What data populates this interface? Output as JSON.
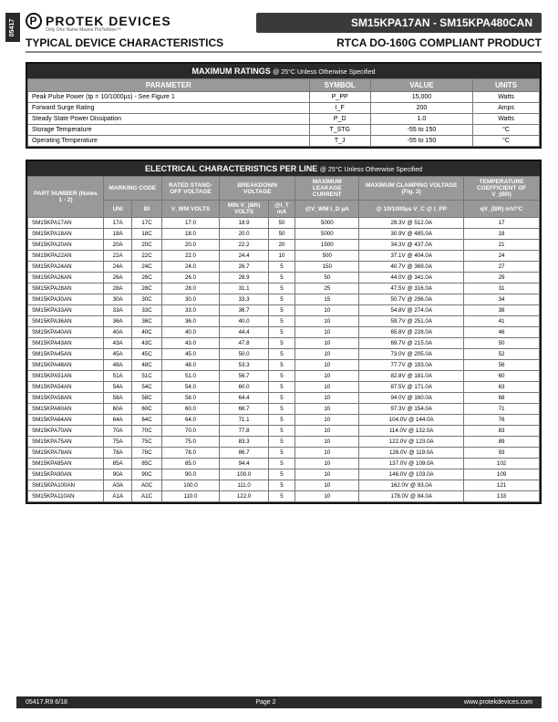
{
  "side_tab": "05417",
  "logo": {
    "brand": "PROTEK DEVICES",
    "p": "P",
    "tagline": "Only One Name Means ProTeKtion™"
  },
  "title_bar": "SM15KPA17AN - SM15KPA480CAN",
  "subhead": {
    "left": "TYPICAL DEVICE CHARACTERISTICS",
    "right": "RTCA DO-160G COMPLIANT PRODUCT"
  },
  "max_ratings": {
    "title": "MAXIMUM RATINGS",
    "title_note": "@ 25°C Unless Otherwise Specified",
    "headers": [
      "PARAMETER",
      "SYMBOL",
      "VALUE",
      "UNITS"
    ],
    "rows": [
      {
        "param": "Peak Pulse Power (tp = 10/1000µs) - See Figure 1",
        "symbol": "P_PP",
        "value": "15,000",
        "units": "Watts"
      },
      {
        "param": "Forward Surge Rating",
        "symbol": "I_F",
        "value": "200",
        "units": "Amps"
      },
      {
        "param": "Steady State Power Dissipation",
        "symbol": "P_D",
        "value": "1.0",
        "units": "Watts"
      },
      {
        "param": "Storage Temperature",
        "symbol": "T_STG",
        "value": "-55 to 150",
        "units": "°C"
      },
      {
        "param": "Operating Temperature",
        "symbol": "T_J",
        "value": "-55 to 150",
        "units": "°C"
      }
    ]
  },
  "elec": {
    "title": "ELECTRICAL CHARACTERISTICS PER LINE",
    "title_note": "@ 25°C Unless Otherwise Specified",
    "h1": {
      "part": "PART NUMBER (Notes 1 - 2)",
      "marking": "MARKING CODE",
      "standoff": "RATED STAND-OFF VOLTAGE",
      "breakdown": "BREAKDOWN VOLTAGE",
      "leakage": "MAXIMUM LEAKAGE CURRENT",
      "clamp": "MAXIMUM CLAMPING VOLTAGE (Fig. 2)",
      "temp": "TEMPERATURE COEFFICIENT OF V_(BR)"
    },
    "h2": {
      "uni": "UNI",
      "bi": "BI",
      "vwm": "V_WM VOLTS",
      "min": "MIN V_(BR) VOLTS",
      "it": "@I_T mA",
      "id": "@V_WM I_D µA",
      "clamp": "@ 10/1000µs V_C @ I_PP",
      "qv": "qV_(BR) mV/°C"
    },
    "rows": [
      {
        "pn": "SM15KPA17AN",
        "uni": "17A",
        "bi": "17C",
        "vwm": "17.0",
        "min": "18.9",
        "it": "50",
        "id": "5000",
        "clamp": "29.3V @ 512.0A",
        "qv": "17"
      },
      {
        "pn": "SM15KPA18AN",
        "uni": "18A",
        "bi": "18C",
        "vwm": "18.0",
        "min": "20.0",
        "it": "50",
        "id": "5000",
        "clamp": "30.9V @ 485.0A",
        "qv": "18"
      },
      {
        "pn": "SM15KPA20AN",
        "uni": "20A",
        "bi": "20C",
        "vwm": "20.0",
        "min": "22.2",
        "it": "20",
        "id": "1500",
        "clamp": "34.3V @ 437.0A",
        "qv": "21"
      },
      {
        "pn": "SM15KPA22AN",
        "uni": "22A",
        "bi": "22C",
        "vwm": "22.0",
        "min": "24.4",
        "it": "10",
        "id": "500",
        "clamp": "37.1V @ 404.0A",
        "qv": "24"
      },
      {
        "pn": "SM15KPA24AN",
        "uni": "24A",
        "bi": "24C",
        "vwm": "24.0",
        "min": "26.7",
        "it": "5",
        "id": "150",
        "clamp": "40.7V @ 369.0A",
        "qv": "27"
      },
      {
        "pn": "SM15KPA26AN",
        "uni": "26A",
        "bi": "26C",
        "vwm": "26.0",
        "min": "28.9",
        "it": "5",
        "id": "50",
        "clamp": "44.0V @ 341.0A",
        "qv": "29"
      },
      {
        "pn": "SM15KPA28AN",
        "uni": "28A",
        "bi": "28C",
        "vwm": "28.0",
        "min": "31.1",
        "it": "5",
        "id": "25",
        "clamp": "47.5V @ 316.0A",
        "qv": "31"
      },
      {
        "pn": "SM15KPA30AN",
        "uni": "30A",
        "bi": "30C",
        "vwm": "30.0",
        "min": "33.3",
        "it": "5",
        "id": "15",
        "clamp": "50.7V @ 296.0A",
        "qv": "34"
      },
      {
        "pn": "SM15KPA33AN",
        "uni": "33A",
        "bi": "33C",
        "vwm": "33.0",
        "min": "36.7",
        "it": "5",
        "id": "10",
        "clamp": "54.8V @ 274.0A",
        "qv": "38"
      },
      {
        "pn": "SM15KPA36AN",
        "uni": "36A",
        "bi": "36C",
        "vwm": "36.0",
        "min": "40.0",
        "it": "5",
        "id": "10",
        "clamp": "59.7V @ 251.0A",
        "qv": "41"
      },
      {
        "pn": "SM15KPA40AN",
        "uni": "40A",
        "bi": "40C",
        "vwm": "40.0",
        "min": "44.4",
        "it": "5",
        "id": "10",
        "clamp": "65.8V @ 228.0A",
        "qv": "46"
      },
      {
        "pn": "SM15KPA43AN",
        "uni": "43A",
        "bi": "43C",
        "vwm": "43.0",
        "min": "47.8",
        "it": "5",
        "id": "10",
        "clamp": "69.7V @ 215.0A",
        "qv": "50"
      },
      {
        "pn": "SM15KPA45AN",
        "uni": "45A",
        "bi": "45C",
        "vwm": "45.0",
        "min": "50.0",
        "it": "5",
        "id": "10",
        "clamp": "73.0V @ 205.0A",
        "qv": "52"
      },
      {
        "pn": "SM15KPA48AN",
        "uni": "48A",
        "bi": "48C",
        "vwm": "48.0",
        "min": "53.3",
        "it": "5",
        "id": "10",
        "clamp": "77.7V @ 193.0A",
        "qv": "56"
      },
      {
        "pn": "SM15KPA51AN",
        "uni": "51A",
        "bi": "51C",
        "vwm": "51.0",
        "min": "56.7",
        "it": "5",
        "id": "10",
        "clamp": "82.8V @ 181.0A",
        "qv": "60"
      },
      {
        "pn": "SM15KPA54AN",
        "uni": "54A",
        "bi": "54C",
        "vwm": "54.0",
        "min": "60.0",
        "it": "5",
        "id": "10",
        "clamp": "87.5V @ 171.0A",
        "qv": "63"
      },
      {
        "pn": "SM15KPA58AN",
        "uni": "58A",
        "bi": "58C",
        "vwm": "58.0",
        "min": "64.4",
        "it": "5",
        "id": "10",
        "clamp": "94.0V @ 160.0A",
        "qv": "68"
      },
      {
        "pn": "SM15KPA60AN",
        "uni": "60A",
        "bi": "60C",
        "vwm": "60.0",
        "min": "66.7",
        "it": "5",
        "id": "10",
        "clamp": "97.3V @ 154.0A",
        "qv": "71"
      },
      {
        "pn": "SM15KPA64AN",
        "uni": "64A",
        "bi": "64C",
        "vwm": "64.0",
        "min": "71.1",
        "it": "5",
        "id": "10",
        "clamp": "104.0V @ 144.0A",
        "qv": "76"
      },
      {
        "pn": "SM15KPA70AN",
        "uni": "70A",
        "bi": "70C",
        "vwm": "70.0",
        "min": "77.8",
        "it": "5",
        "id": "10",
        "clamp": "114.0V @ 132.0A",
        "qv": "83"
      },
      {
        "pn": "SM15KPA75AN",
        "uni": "75A",
        "bi": "75C",
        "vwm": "75.0",
        "min": "83.3",
        "it": "5",
        "id": "10",
        "clamp": "122.0V @ 123.0A",
        "qv": "89"
      },
      {
        "pn": "SM15KPA78AN",
        "uni": "78A",
        "bi": "78C",
        "vwm": "78.0",
        "min": "86.7",
        "it": "5",
        "id": "10",
        "clamp": "126.0V @ 119.0A",
        "qv": "93"
      },
      {
        "pn": "SM15KPA85AN",
        "uni": "85A",
        "bi": "85C",
        "vwm": "85.0",
        "min": "94.4",
        "it": "5",
        "id": "10",
        "clamp": "137.0V @ 109.0A",
        "qv": "102"
      },
      {
        "pn": "SM15KPA90AN",
        "uni": "90A",
        "bi": "90C",
        "vwm": "90.0",
        "min": "100.0",
        "it": "5",
        "id": "10",
        "clamp": "146.0V @ 103.0A",
        "qv": "109"
      },
      {
        "pn": "SM15KPA100AN",
        "uni": "A0A",
        "bi": "A0C",
        "vwm": "100.0",
        "min": "111.0",
        "it": "5",
        "id": "10",
        "clamp": "162.0V @ 93.0A",
        "qv": "121"
      },
      {
        "pn": "SM15KPA110AN",
        "uni": "A1A",
        "bi": "A1C",
        "vwm": "110.0",
        "min": "122.0",
        "it": "5",
        "id": "10",
        "clamp": "178.0V @ 84.0A",
        "qv": "133"
      }
    ]
  },
  "footer": {
    "left": "05417.R9 6/18",
    "center": "Page 2",
    "right": "www.protekdevices.com"
  },
  "colors": {
    "dark": "#2a2a2a",
    "mid": "#3a3a3a",
    "hdr": "#999999",
    "border": "#777777",
    "rule": "#888888"
  }
}
